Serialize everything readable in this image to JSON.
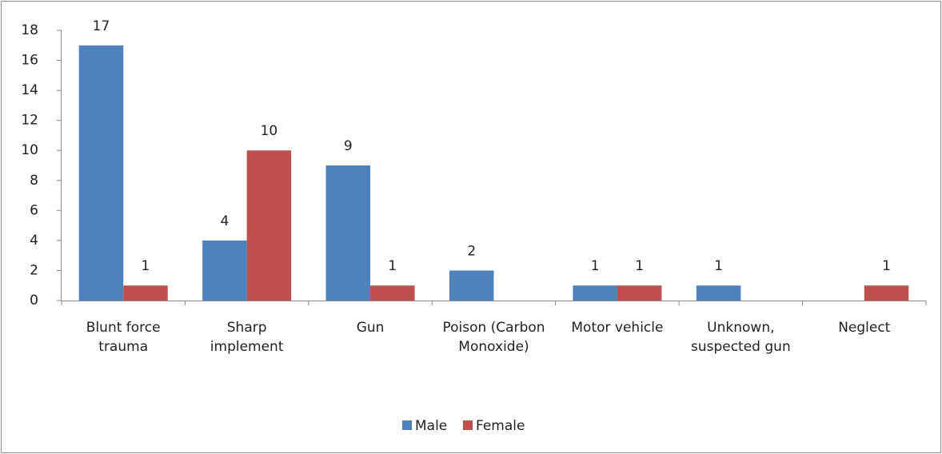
{
  "chart_data": {
    "type": "bar",
    "categories": [
      "Blunt force trauma",
      "Sharp implement",
      "Gun",
      "Poison (Carbon Monoxide)",
      "Motor vehicle",
      "Unknown, suspected gun",
      "Neglect"
    ],
    "series": [
      {
        "name": "Male",
        "color": "#4f81bd",
        "values": [
          17,
          4,
          9,
          2,
          1,
          1,
          null
        ]
      },
      {
        "name": "Female",
        "color": "#c0504d",
        "values": [
          1,
          10,
          1,
          null,
          1,
          null,
          1
        ]
      }
    ],
    "ylim": [
      0,
      18
    ],
    "yticks": [
      0,
      2,
      4,
      6,
      8,
      10,
      12,
      14,
      16,
      18
    ],
    "grid": false,
    "legend": "bottom"
  }
}
